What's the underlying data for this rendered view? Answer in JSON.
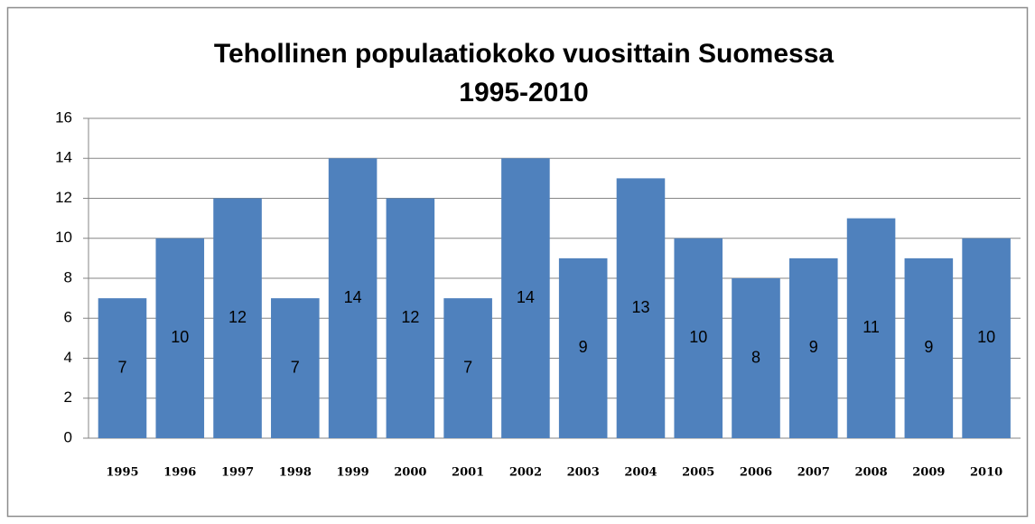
{
  "chart_data": {
    "type": "bar",
    "title": "Tehollinen populaatiokoko vuosittain Suomessa 1995-2010",
    "categories": [
      "1995",
      "1996",
      "1997",
      "1998",
      "1999",
      "2000",
      "2001",
      "2002",
      "2003",
      "2004",
      "2005",
      "2006",
      "2007",
      "2008",
      "2009",
      "2010"
    ],
    "values": [
      7,
      10,
      12,
      7,
      14,
      12,
      7,
      14,
      9,
      13,
      10,
      8,
      9,
      11,
      9,
      10
    ],
    "color": "#4f81bd",
    "ylim": [
      0,
      16
    ],
    "yticks": [
      0,
      2,
      4,
      6,
      8,
      10,
      12,
      14,
      16
    ],
    "grid": true
  }
}
